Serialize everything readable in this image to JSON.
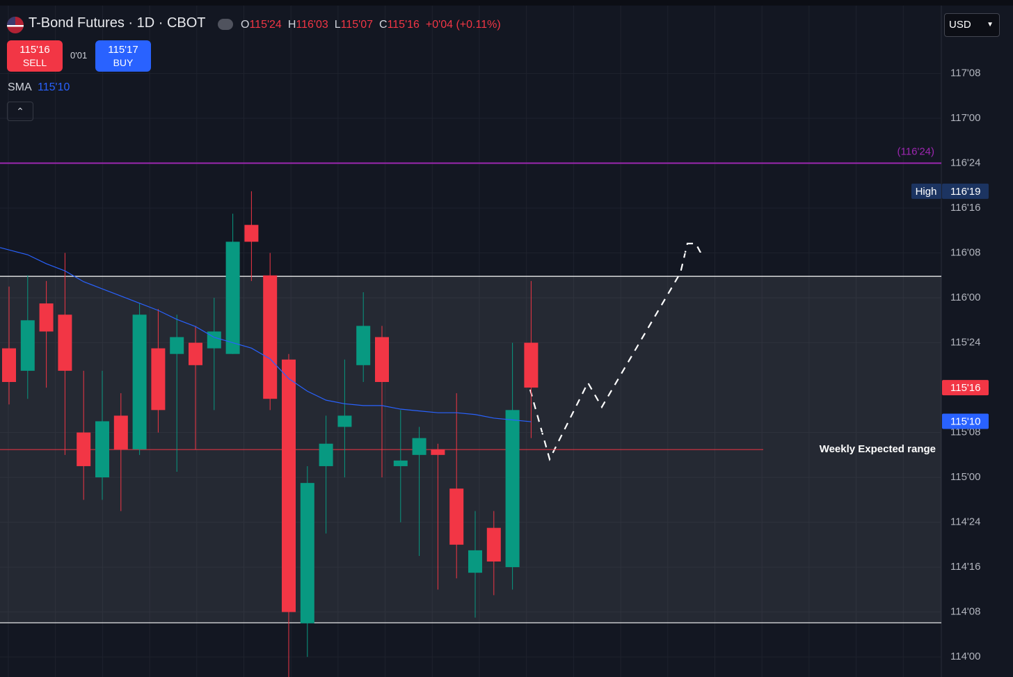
{
  "header": {
    "title": "T-Bond Futures · 1D · CBOT",
    "ohlc": [
      {
        "key": "O",
        "value": "115'24"
      },
      {
        "key": "H",
        "value": "116'03"
      },
      {
        "key": "L",
        "value": "115'07"
      },
      {
        "key": "C",
        "value": "115'16"
      }
    ],
    "change": "+0'04 (+0.11%)",
    "sell": {
      "price": "115'16",
      "label": "SELL"
    },
    "spread": "0'01",
    "buy": {
      "price": "115'17",
      "label": "BUY"
    },
    "indicator": {
      "name": "SMA",
      "value": "115'10"
    },
    "currency": "USD"
  },
  "chart_data": {
    "type": "candlestick",
    "up_color": "#089981",
    "down_color": "#f23645",
    "candles": [
      {
        "o": 115.71875,
        "h": 116.0625,
        "l": 115.40625,
        "c": 115.53125
      },
      {
        "o": 115.59375,
        "h": 116.125,
        "l": 115.4375,
        "c": 115.875
      },
      {
        "o": 115.96875,
        "h": 116.09375,
        "l": 115.5,
        "c": 115.8125
      },
      {
        "o": 115.90625,
        "h": 116.25,
        "l": 115.125,
        "c": 115.59375
      },
      {
        "o": 115.25,
        "h": 115.59375,
        "l": 114.875,
        "c": 115.0625
      },
      {
        "o": 115,
        "h": 115.59375,
        "l": 114.875,
        "c": 115.3125
      },
      {
        "o": 115.34375,
        "h": 115.46875,
        "l": 114.8125,
        "c": 115.15625
      },
      {
        "o": 115.15625,
        "h": 115.96875,
        "l": 115.125,
        "c": 115.90625
      },
      {
        "o": 115.71875,
        "h": 115.9375,
        "l": 115.25,
        "c": 115.375
      },
      {
        "o": 115.6875,
        "h": 115.90625,
        "l": 115.03125,
        "c": 115.78125
      },
      {
        "o": 115.75,
        "h": 115.84375,
        "l": 115.15625,
        "c": 115.625
      },
      {
        "o": 115.71875,
        "h": 116,
        "l": 115.375,
        "c": 115.8125
      },
      {
        "o": 115.6875,
        "h": 116.46875,
        "l": 115.6875,
        "c": 116.3125
      },
      {
        "o": 116.40625,
        "h": 116.59375,
        "l": 116.09375,
        "c": 116.3125
      },
      {
        "o": 116.125,
        "h": 116.25,
        "l": 115.375,
        "c": 115.4375
      },
      {
        "o": 115.65625,
        "h": 115.6875,
        "l": 113.875,
        "c": 114.25
      },
      {
        "o": 114.1875,
        "h": 115.0625,
        "l": 114,
        "c": 114.96875
      },
      {
        "o": 115.0625,
        "h": 115.34375,
        "l": 114.6875,
        "c": 115.1875
      },
      {
        "o": 115.28125,
        "h": 115.65625,
        "l": 115,
        "c": 115.34375
      },
      {
        "o": 115.625,
        "h": 116.03125,
        "l": 115.53125,
        "c": 115.84375
      },
      {
        "o": 115.78125,
        "h": 115.84375,
        "l": 115,
        "c": 115.53125
      },
      {
        "o": 115.0625,
        "h": 115.375,
        "l": 114.75,
        "c": 115.09375
      },
      {
        "o": 115.125,
        "h": 115.28125,
        "l": 114.5625,
        "c": 115.21875
      },
      {
        "o": 115.15625,
        "h": 115.1875,
        "l": 114.375,
        "c": 115.125
      },
      {
        "o": 114.9375,
        "h": 115.46875,
        "l": 114.4375,
        "c": 114.625
      },
      {
        "o": 114.46875,
        "h": 114.8125,
        "l": 114.21875,
        "c": 114.59375
      },
      {
        "o": 114.71875,
        "h": 114.8125,
        "l": 114.34375,
        "c": 114.53125
      },
      {
        "o": 114.5,
        "h": 115.75,
        "l": 114.375,
        "c": 115.375
      },
      {
        "o": 115.75,
        "h": 116.09375,
        "l": 115.21875,
        "c": 115.5
      }
    ],
    "sma": {
      "color": "#2962ff",
      "values": [
        116.28,
        116.24,
        116.19,
        116.15,
        116.09,
        116.05,
        116.01,
        115.97,
        115.93,
        115.88,
        115.84,
        115.78,
        115.75,
        115.72,
        115.66,
        115.55,
        115.48,
        115.43,
        115.41,
        115.4,
        115.4,
        115.38,
        115.37,
        115.36,
        115.36,
        115.35,
        115.33,
        115.32,
        115.31
      ]
    },
    "level": {
      "value": 116.75,
      "label": "(116'24)",
      "color": "#9c27b0"
    },
    "range": {
      "top": 116.12,
      "bottom": 114.19
    },
    "expected": {
      "value": 115.155,
      "label": "Weekly Expected range",
      "color": "#f23645"
    },
    "price_tags": [
      {
        "name": "High",
        "value": 116.59375,
        "label": "116'19",
        "color": "#1c3461"
      },
      {
        "value": 115.5,
        "label": "115'16",
        "color": "#f23645"
      },
      {
        "value": 115.3125,
        "label": "115'10",
        "color": "#2962ff"
      }
    ],
    "ylim": [
      113.888,
      117.659
    ],
    "yticks": [
      {
        "value": 114,
        "label": "114'00"
      },
      {
        "value": 114.25,
        "label": "114'08"
      },
      {
        "value": 114.5,
        "label": "114'16"
      },
      {
        "value": 114.75,
        "label": "114'24"
      },
      {
        "value": 115,
        "label": "115'00"
      },
      {
        "value": 115.25,
        "label": "115'08"
      },
      {
        "value": 115.75,
        "label": "115'24"
      },
      {
        "value": 116,
        "label": "116'00"
      },
      {
        "value": 116.25,
        "label": "116'08"
      },
      {
        "value": 116.5,
        "label": "116'16"
      },
      {
        "value": 116.75,
        "label": "116'24"
      },
      {
        "value": 117,
        "label": "117'00"
      },
      {
        "value": 117.25,
        "label": "117'08"
      }
    ],
    "grid": true
  }
}
